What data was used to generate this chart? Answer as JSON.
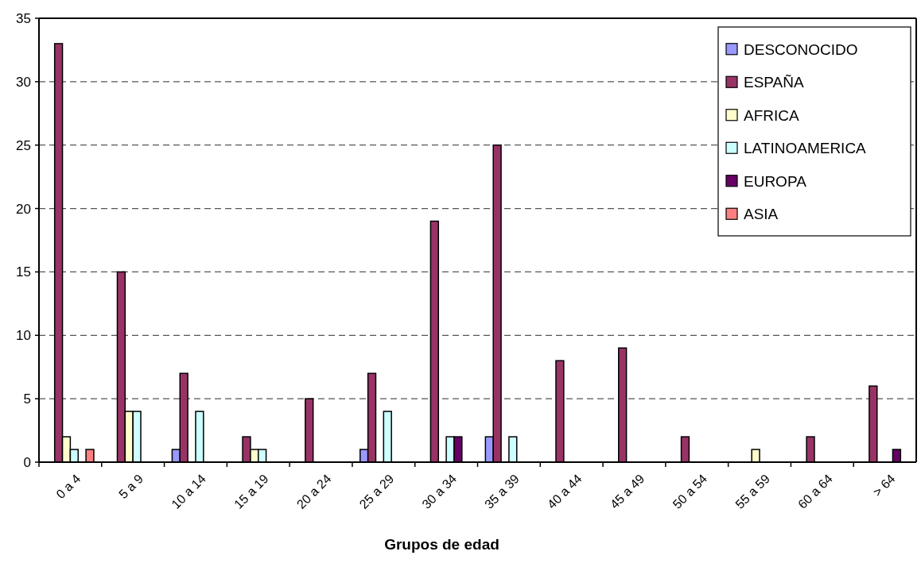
{
  "chart_data": {
    "type": "bar",
    "xlabel": "Grupos de edad",
    "categories": [
      "0 a 4",
      "5 a 9",
      "10 a 14",
      "15 a 19",
      "20 a 24",
      "25 a 29",
      "30 a 34",
      "35 a 39",
      "40 a 44",
      "45 a 49",
      "50 a 54",
      "55 a 59",
      "60 a 64",
      "> 64"
    ],
    "series": [
      {
        "name": "DESCONOCIDO",
        "color": "#9999ff",
        "values": [
          null,
          null,
          1,
          null,
          null,
          1,
          null,
          2,
          null,
          null,
          null,
          null,
          null,
          null
        ]
      },
      {
        "name": "ESPAÑA",
        "color": "#993366",
        "values": [
          33,
          15,
          7,
          2,
          5,
          7,
          19,
          25,
          8,
          9,
          2,
          null,
          2,
          6
        ]
      },
      {
        "name": "AFRICA",
        "color": "#ffffcc",
        "values": [
          2,
          4,
          null,
          1,
          null,
          null,
          null,
          null,
          null,
          null,
          null,
          1,
          null,
          null
        ]
      },
      {
        "name": "LATINOAMERICA",
        "color": "#ccffff",
        "values": [
          1,
          4,
          4,
          1,
          null,
          4,
          2,
          2,
          null,
          null,
          null,
          null,
          null,
          null
        ]
      },
      {
        "name": "EUROPA",
        "color": "#660066",
        "values": [
          null,
          null,
          null,
          null,
          null,
          null,
          2,
          null,
          null,
          null,
          null,
          null,
          null,
          1
        ]
      },
      {
        "name": "ASIA",
        "color": "#ff8080",
        "values": [
          1,
          null,
          null,
          null,
          null,
          null,
          null,
          null,
          null,
          null,
          null,
          null,
          null,
          null
        ]
      }
    ],
    "ylim": [
      0,
      35
    ],
    "yticks": [
      0,
      5,
      10,
      15,
      20,
      25,
      30,
      35
    ],
    "grid": "y",
    "legend": "top right"
  }
}
